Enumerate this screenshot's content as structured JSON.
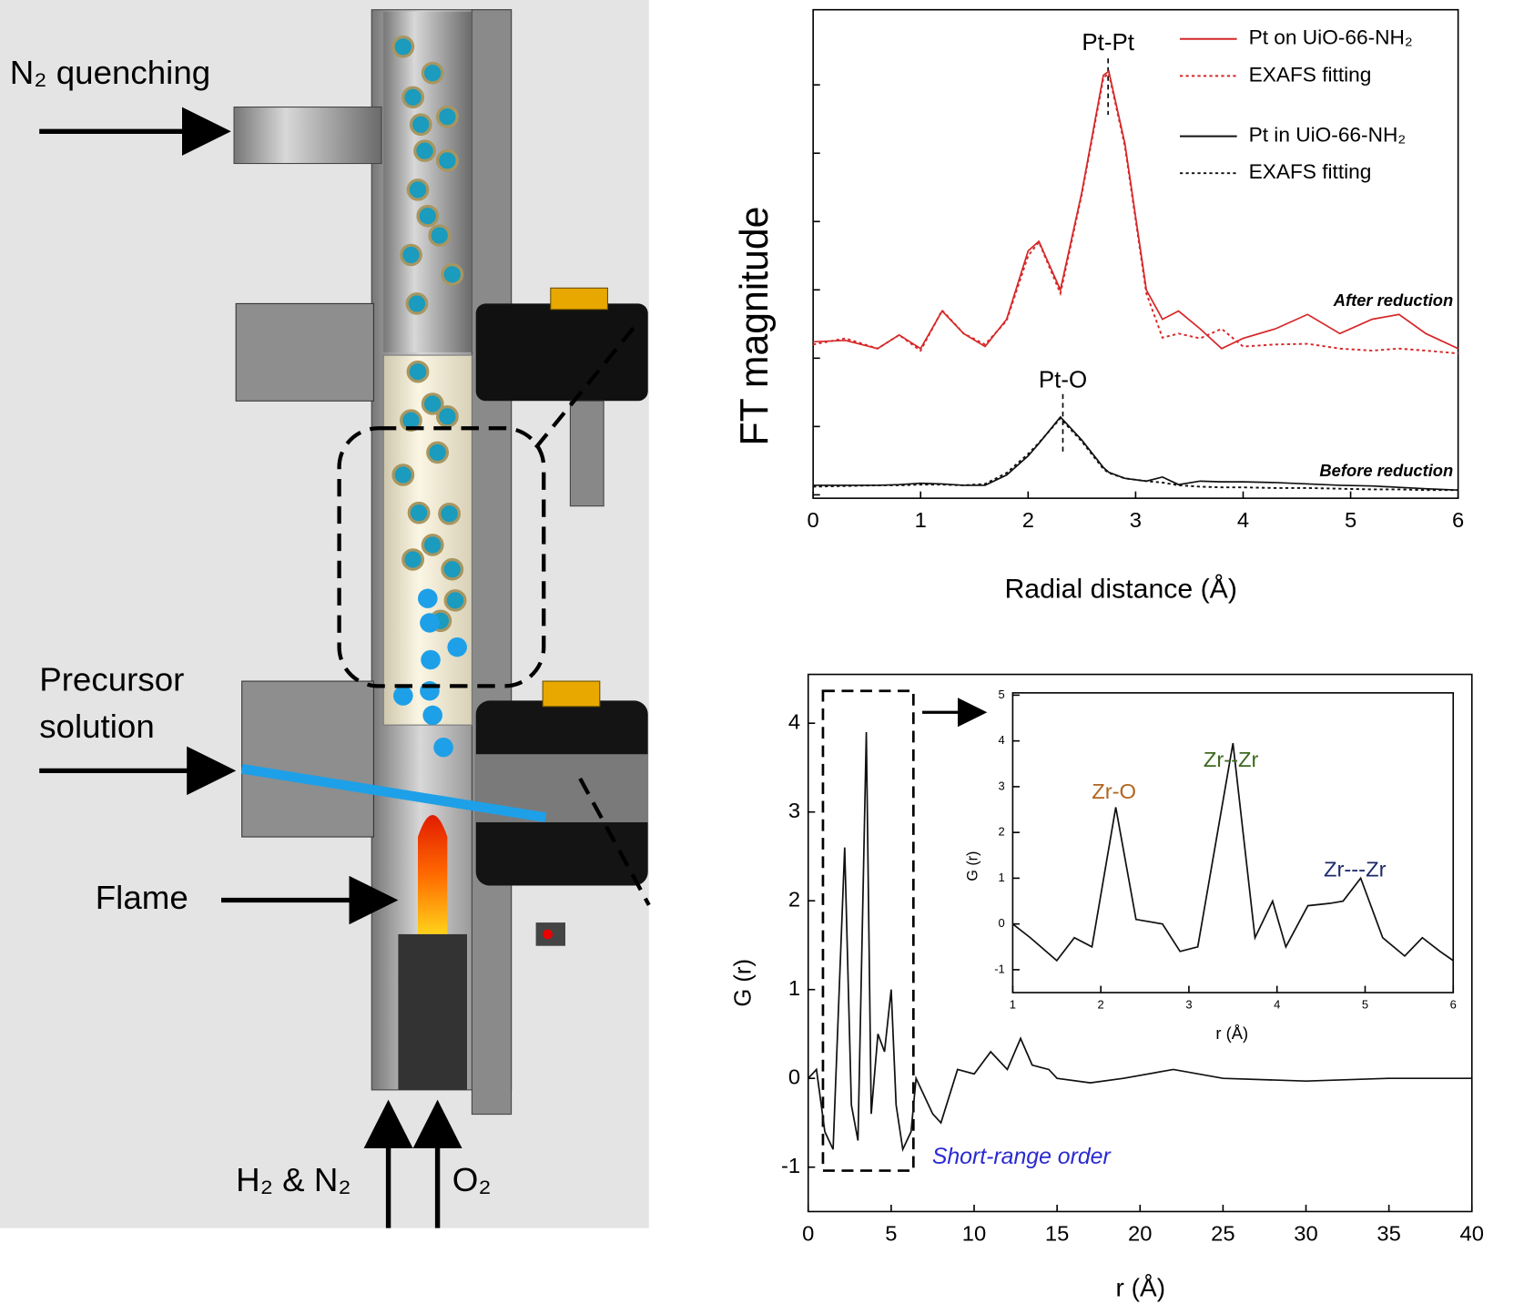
{
  "diagram": {
    "labels": [
      "N₂ quenching",
      "Precursor solution",
      "Flame",
      "H₂ & N₂",
      "O₂"
    ]
  },
  "chart_data": [
    {
      "type": "line",
      "ylabel": "FT magnitude",
      "xlabel": "Radial distance  (Å)",
      "xlim": [
        0,
        6
      ],
      "xticks": [
        0,
        1,
        2,
        3,
        4,
        5,
        6
      ],
      "ylim": [
        -0.05,
        7.1
      ],
      "yticks": [
        0,
        1,
        2,
        3,
        4,
        5,
        6
      ],
      "annotations": [
        "Pt-Pt",
        "Pt-O",
        "After reduction",
        "Before reduction"
      ],
      "x": [
        0,
        0.3,
        0.6,
        0.8,
        1.0,
        1.2,
        1.4,
        1.6,
        1.8,
        2.0,
        2.1,
        2.3,
        2.5,
        2.7,
        2.75,
        2.9,
        3.1,
        3.25,
        3.4,
        3.6,
        3.8,
        4.0,
        4.3,
        4.6,
        4.9,
        5.2,
        5.45,
        5.7,
        6.0
      ],
      "series": [
        {
          "name": "Pt on UiO-66-NH₂",
          "color": "#d62728",
          "dashed": false,
          "values": [
            2.24,
            2.26,
            2.14,
            2.34,
            2.14,
            2.69,
            2.36,
            2.17,
            2.57,
            3.57,
            3.71,
            3.0,
            4.43,
            6.14,
            6.2,
            5.14,
            3.0,
            2.57,
            2.69,
            2.43,
            2.14,
            2.29,
            2.43,
            2.64,
            2.36,
            2.57,
            2.64,
            2.36,
            2.14
          ]
        },
        {
          "name": "EXAFS fitting",
          "color": "#d62728",
          "dashed": true,
          "values": [
            2.2,
            2.29,
            2.14,
            2.34,
            2.11,
            2.7,
            2.36,
            2.2,
            2.55,
            3.5,
            3.7,
            2.95,
            4.4,
            6.1,
            6.17,
            5.1,
            2.95,
            2.3,
            2.36,
            2.29,
            2.43,
            2.17,
            2.2,
            2.21,
            2.14,
            2.11,
            2.14,
            2.11,
            2.07
          ]
        },
        {
          "name": "Pt in UiO-66-NH₂",
          "color": "#111111",
          "dashed": false,
          "values": [
            0.14,
            0.14,
            0.14,
            0.15,
            0.17,
            0.16,
            0.14,
            0.14,
            0.29,
            0.57,
            0.75,
            1.14,
            0.8,
            0.4,
            0.33,
            0.24,
            0.2,
            0.26,
            0.15,
            0.2,
            0.19,
            0.19,
            0.18,
            0.16,
            0.14,
            0.13,
            0.11,
            0.09,
            0.07
          ]
        },
        {
          "name": "EXAFS fitting",
          "color": "#111111",
          "dashed": true,
          "values": [
            0.12,
            0.13,
            0.14,
            0.14,
            0.15,
            0.15,
            0.14,
            0.16,
            0.32,
            0.6,
            0.76,
            1.12,
            0.78,
            0.38,
            0.32,
            0.24,
            0.2,
            0.18,
            0.14,
            0.12,
            0.11,
            0.11,
            0.1,
            0.1,
            0.09,
            0.08,
            0.08,
            0.07,
            0.07
          ]
        }
      ]
    },
    {
      "type": "line",
      "ylabel": "G (r)",
      "xlabel": "r (Å)",
      "color": "#111111",
      "xlim": [
        0,
        40
      ],
      "xticks": [
        0,
        5,
        10,
        15,
        20,
        25,
        30,
        35,
        40
      ],
      "ylim": [
        -1.5,
        4.55
      ],
      "yticks": [
        -1,
        0,
        1,
        2,
        3,
        4
      ],
      "annotations": [
        "Short-range order"
      ],
      "x": [
        0,
        0.5,
        1,
        1.5,
        2.2,
        2.6,
        3,
        3.5,
        3.8,
        4.2,
        4.6,
        5,
        5.3,
        5.7,
        6.2,
        6.5,
        7.5,
        8,
        9,
        10,
        11,
        12,
        12.8,
        13.5,
        14.5,
        15,
        17,
        19,
        22,
        25,
        30,
        35,
        40
      ],
      "values": [
        0,
        0.1,
        -0.6,
        -0.8,
        2.6,
        -0.3,
        -0.7,
        3.9,
        -0.4,
        0.5,
        0.3,
        1.0,
        -0.3,
        -0.8,
        -0.6,
        0,
        -0.4,
        -0.5,
        0.1,
        0.05,
        0.3,
        0.1,
        0.45,
        0.15,
        0.1,
        0,
        -0.05,
        0,
        0.1,
        0,
        -0.03,
        0,
        0
      ]
    },
    {
      "type": "line",
      "ylabel": "G (r)",
      "xlabel": "r (Å)",
      "color": "#111111",
      "xlim": [
        1,
        6
      ],
      "xticks": [
        1,
        2,
        3,
        4,
        5,
        6
      ],
      "ylim": [
        -1.5,
        5.05
      ],
      "yticks": [
        -1,
        0,
        1,
        2,
        3,
        4,
        5
      ],
      "annotations": [
        "Zr-O",
        "Zr--Zr",
        "Zr---Zr"
      ],
      "x": [
        1,
        1.2,
        1.5,
        1.7,
        1.9,
        2.17,
        2.4,
        2.7,
        2.9,
        3.1,
        3.5,
        3.75,
        3.95,
        4.1,
        4.35,
        4.6,
        4.75,
        4.95,
        5.2,
        5.45,
        5.65,
        5.85,
        6
      ],
      "values": [
        0,
        -0.3,
        -0.8,
        -0.3,
        -0.5,
        2.55,
        0.1,
        0,
        -0.6,
        -0.5,
        3.95,
        -0.3,
        0.5,
        -0.5,
        0.4,
        0.45,
        0.5,
        1.0,
        -0.3,
        -0.7,
        -0.3,
        -0.6,
        -0.8
      ]
    }
  ]
}
